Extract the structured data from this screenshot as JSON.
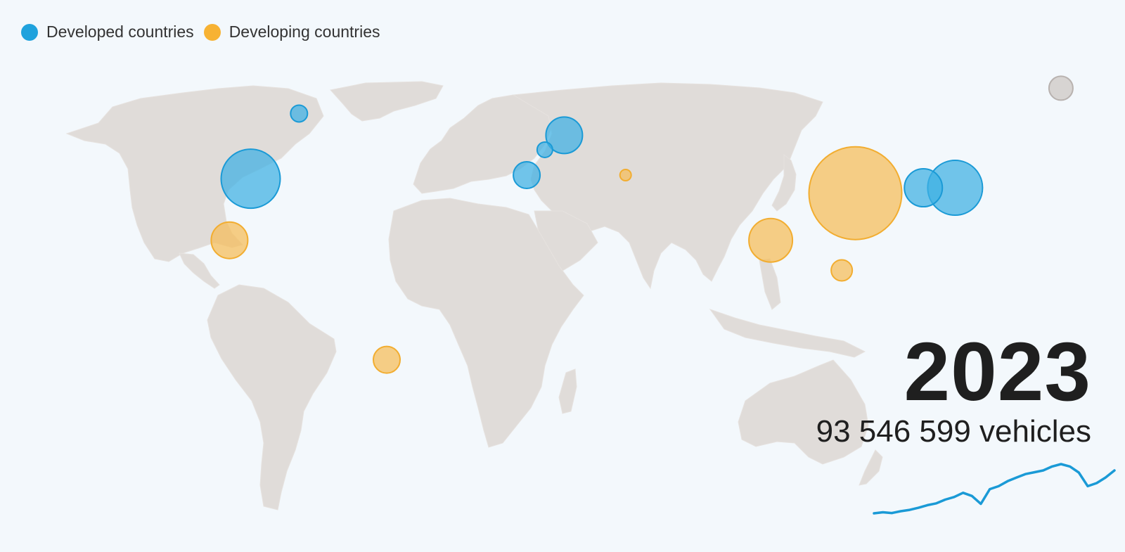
{
  "legend": {
    "items": [
      {
        "label": "Developed countries",
        "color": "#1fa2dd"
      },
      {
        "label": "Developing countries",
        "color": "#f7b233"
      }
    ]
  },
  "year": "2023",
  "total": "93 546 599 vehicles",
  "colors": {
    "developed_fill": "#3db0e3",
    "developed_stroke": "#1a9ad6",
    "developing_fill": "#f5bd58",
    "developing_stroke": "#f2ad30",
    "other_fill": "#d4cfcd",
    "other_stroke": "#b8b2af",
    "land": "#e0dcd9",
    "ocean": "#f3f8fc",
    "trend_line": "#1a9ad6"
  },
  "bubbles": [
    {
      "name": "Canada",
      "group": "developed",
      "lon": -79,
      "lat": 57,
      "r": 12
    },
    {
      "name": "United States",
      "group": "developed",
      "lon": -95,
      "lat": 39,
      "r": 42
    },
    {
      "name": "Mexico",
      "group": "developing",
      "lon": -102,
      "lat": 22,
      "r": 26
    },
    {
      "name": "Brazil",
      "group": "developing",
      "lon": -50,
      "lat": -11,
      "r": 19
    },
    {
      "name": "Spain",
      "group": "developed",
      "lon": -3.7,
      "lat": 40,
      "r": 19
    },
    {
      "name": "France",
      "group": "developed",
      "lon": 2.3,
      "lat": 47,
      "r": 11
    },
    {
      "name": "Germany",
      "group": "developed",
      "lon": 8.7,
      "lat": 51,
      "r": 26
    },
    {
      "name": "Turkey",
      "group": "developing",
      "lon": 29,
      "lat": 40,
      "r": 8
    },
    {
      "name": "India",
      "group": "developing",
      "lon": 77,
      "lat": 22,
      "r": 31
    },
    {
      "name": "China",
      "group": "developing",
      "lon": 105,
      "lat": 35,
      "r": 66
    },
    {
      "name": "Thailand",
      "group": "developing",
      "lon": 100.5,
      "lat": 13.7,
      "r": 15
    },
    {
      "name": "South Korea",
      "group": "developed",
      "lon": 127.5,
      "lat": 36.5,
      "r": 27
    },
    {
      "name": "Japan",
      "group": "developed",
      "lon": 138,
      "lat": 36.5,
      "r": 39
    },
    {
      "name": "Others",
      "group": "other",
      "lon": 173,
      "lat": 64,
      "r": 17
    }
  ],
  "trend": [
    {
      "year": 1997,
      "value": 54.1
    },
    {
      "year": 1998,
      "value": 54.5
    },
    {
      "year": 1999,
      "value": 54.2
    },
    {
      "year": 2000,
      "value": 54.9
    },
    {
      "year": 2001,
      "value": 55.4
    },
    {
      "year": 2002,
      "value": 56.2
    },
    {
      "year": 2003,
      "value": 57.2
    },
    {
      "year": 2004,
      "value": 57.9
    },
    {
      "year": 2005,
      "value": 59.3
    },
    {
      "year": 2006,
      "value": 60.3
    },
    {
      "year": 2007,
      "value": 61.9
    },
    {
      "year": 2008,
      "value": 60.7
    },
    {
      "year": 2009,
      "value": 57.7
    },
    {
      "year": 2010,
      "value": 63.3
    },
    {
      "year": 2011,
      "value": 64.4
    },
    {
      "year": 2012,
      "value": 66.3
    },
    {
      "year": 2013,
      "value": 67.7
    },
    {
      "year": 2014,
      "value": 69.0
    },
    {
      "year": 2015,
      "value": 69.7
    },
    {
      "year": 2016,
      "value": 70.4
    },
    {
      "year": 2017,
      "value": 71.9
    },
    {
      "year": 2018,
      "value": 72.8
    },
    {
      "year": 2019,
      "value": 71.9
    },
    {
      "year": 2020,
      "value": 69.6
    },
    {
      "year": 2021,
      "value": 64.4
    },
    {
      "year": 2022,
      "value": 65.6
    },
    {
      "year": 2023,
      "value": 67.7
    },
    {
      "year": 2024,
      "value": 70.4
    }
  ]
}
